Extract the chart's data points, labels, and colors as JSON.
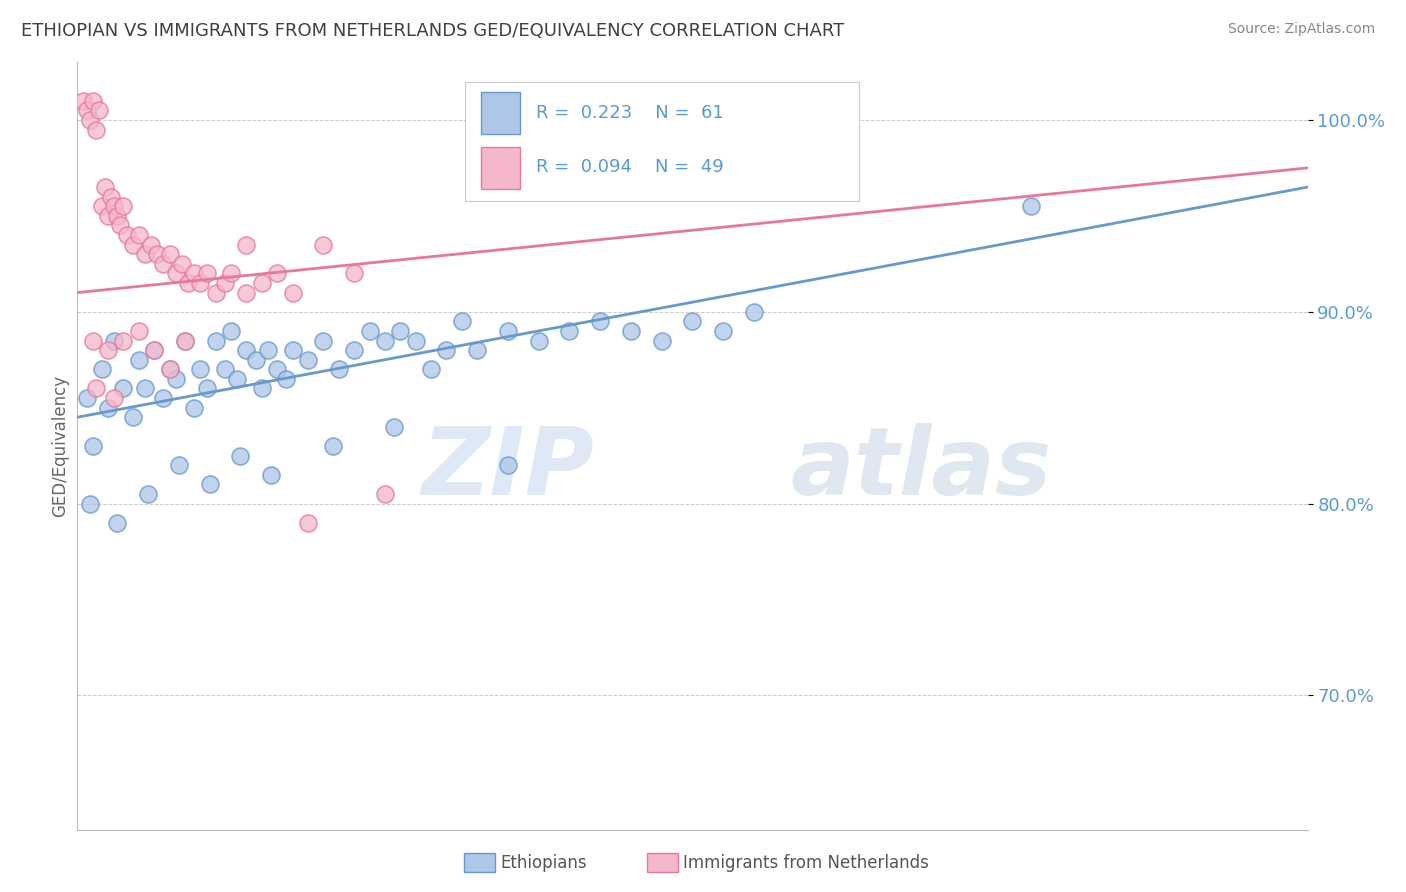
{
  "title": "ETHIOPIAN VS IMMIGRANTS FROM NETHERLANDS GED/EQUIVALENCY CORRELATION CHART",
  "source": "Source: ZipAtlas.com",
  "ylabel": "GED/Equivalency",
  "xmin": 0.0,
  "xmax": 40.0,
  "ymin": 63.0,
  "ymax": 103.0,
  "yticks": [
    70.0,
    80.0,
    90.0,
    100.0
  ],
  "ytick_labels": [
    "70.0%",
    "80.0%",
    "90.0%",
    "100.0%"
  ],
  "legend_R_blue": "R = 0.223",
  "legend_N_blue": "N = 61",
  "legend_R_pink": "R = 0.094",
  "legend_N_pink": "N = 49",
  "blue_color": "#aec6e8",
  "pink_color": "#f5b8cb",
  "blue_edge_color": "#6699cc",
  "pink_edge_color": "#e8789a",
  "blue_line_color": "#6699cc",
  "pink_line_color": "#e8789a",
  "blue_scatter": [
    [
      0.3,
      85.5
    ],
    [
      0.5,
      83.0
    ],
    [
      0.8,
      87.0
    ],
    [
      1.0,
      85.0
    ],
    [
      1.2,
      88.5
    ],
    [
      1.5,
      86.0
    ],
    [
      1.8,
      84.5
    ],
    [
      2.0,
      87.5
    ],
    [
      2.2,
      86.0
    ],
    [
      2.5,
      88.0
    ],
    [
      2.8,
      85.5
    ],
    [
      3.0,
      87.0
    ],
    [
      3.2,
      86.5
    ],
    [
      3.5,
      88.5
    ],
    [
      3.8,
      85.0
    ],
    [
      4.0,
      87.0
    ],
    [
      4.2,
      86.0
    ],
    [
      4.5,
      88.5
    ],
    [
      4.8,
      87.0
    ],
    [
      5.0,
      89.0
    ],
    [
      5.2,
      86.5
    ],
    [
      5.5,
      88.0
    ],
    [
      5.8,
      87.5
    ],
    [
      6.0,
      86.0
    ],
    [
      6.2,
      88.0
    ],
    [
      6.5,
      87.0
    ],
    [
      6.8,
      86.5
    ],
    [
      7.0,
      88.0
    ],
    [
      7.5,
      87.5
    ],
    [
      8.0,
      88.5
    ],
    [
      8.5,
      87.0
    ],
    [
      9.0,
      88.0
    ],
    [
      9.5,
      89.0
    ],
    [
      10.0,
      88.5
    ],
    [
      10.5,
      89.0
    ],
    [
      11.0,
      88.5
    ],
    [
      11.5,
      87.0
    ],
    [
      12.0,
      88.0
    ],
    [
      12.5,
      89.5
    ],
    [
      13.0,
      88.0
    ],
    [
      14.0,
      89.0
    ],
    [
      15.0,
      88.5
    ],
    [
      16.0,
      89.0
    ],
    [
      17.0,
      89.5
    ],
    [
      18.0,
      89.0
    ],
    [
      19.0,
      88.5
    ],
    [
      20.0,
      89.5
    ],
    [
      21.0,
      89.0
    ],
    [
      22.0,
      90.0
    ],
    [
      0.4,
      80.0
    ],
    [
      1.3,
      79.0
    ],
    [
      2.3,
      80.5
    ],
    [
      3.3,
      82.0
    ],
    [
      4.3,
      81.0
    ],
    [
      5.3,
      82.5
    ],
    [
      6.3,
      81.5
    ],
    [
      8.3,
      83.0
    ],
    [
      10.3,
      84.0
    ],
    [
      14.0,
      82.0
    ],
    [
      25.0,
      99.5
    ],
    [
      31.0,
      95.5
    ]
  ],
  "pink_scatter": [
    [
      0.2,
      101.0
    ],
    [
      0.3,
      100.5
    ],
    [
      0.4,
      100.0
    ],
    [
      0.5,
      101.0
    ],
    [
      0.6,
      99.5
    ],
    [
      0.7,
      100.5
    ],
    [
      0.8,
      95.5
    ],
    [
      0.9,
      96.5
    ],
    [
      1.0,
      95.0
    ],
    [
      1.1,
      96.0
    ],
    [
      1.2,
      95.5
    ],
    [
      1.3,
      95.0
    ],
    [
      1.4,
      94.5
    ],
    [
      1.5,
      95.5
    ],
    [
      1.6,
      94.0
    ],
    [
      1.8,
      93.5
    ],
    [
      2.0,
      94.0
    ],
    [
      2.2,
      93.0
    ],
    [
      2.4,
      93.5
    ],
    [
      2.6,
      93.0
    ],
    [
      2.8,
      92.5
    ],
    [
      3.0,
      93.0
    ],
    [
      3.2,
      92.0
    ],
    [
      3.4,
      92.5
    ],
    [
      3.6,
      91.5
    ],
    [
      3.8,
      92.0
    ],
    [
      4.0,
      91.5
    ],
    [
      4.2,
      92.0
    ],
    [
      4.5,
      91.0
    ],
    [
      4.8,
      91.5
    ],
    [
      5.0,
      92.0
    ],
    [
      5.5,
      91.0
    ],
    [
      6.0,
      91.5
    ],
    [
      6.5,
      92.0
    ],
    [
      7.0,
      91.0
    ],
    [
      0.5,
      88.5
    ],
    [
      1.0,
      88.0
    ],
    [
      1.5,
      88.5
    ],
    [
      2.0,
      89.0
    ],
    [
      2.5,
      88.0
    ],
    [
      3.5,
      88.5
    ],
    [
      5.5,
      93.5
    ],
    [
      8.0,
      93.5
    ],
    [
      9.0,
      92.0
    ],
    [
      7.5,
      79.0
    ],
    [
      10.0,
      80.5
    ],
    [
      0.6,
      86.0
    ],
    [
      1.2,
      85.5
    ],
    [
      3.0,
      87.0
    ]
  ],
  "watermark_zip": "ZIP",
  "watermark_atlas": "atlas",
  "background_color": "#ffffff",
  "grid_color": "#cccccc",
  "axis_label_color": "#5b9bd5",
  "title_color": "#404040"
}
